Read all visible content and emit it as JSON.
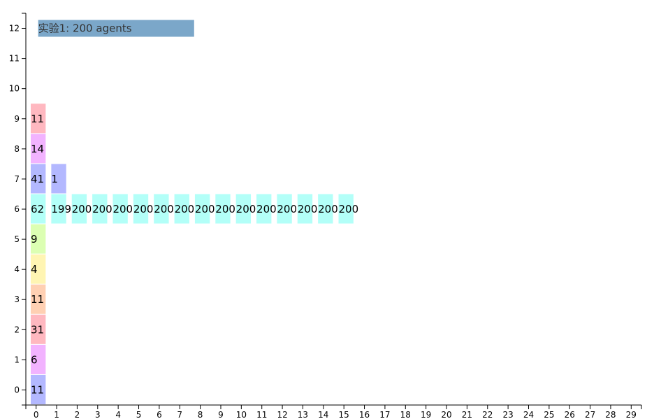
{
  "chart_data": {
    "type": "heatmap",
    "title": "实验1: 200 agents",
    "x_ticks": [
      0,
      1,
      2,
      3,
      4,
      5,
      6,
      7,
      8,
      9,
      10,
      11,
      12,
      13,
      14,
      15,
      16,
      17,
      18,
      19,
      20,
      21,
      22,
      23,
      24,
      25,
      26,
      27,
      28,
      29
    ],
    "y_ticks": [
      0,
      1,
      2,
      3,
      4,
      5,
      6,
      7,
      8,
      9,
      10,
      11,
      12
    ],
    "xlim": [
      -0.5,
      29.5
    ],
    "ylim": [
      -0.5,
      12.5
    ],
    "cells": [
      {
        "x": 0,
        "y": 0,
        "value": 11
      },
      {
        "x": 0,
        "y": 1,
        "value": 6
      },
      {
        "x": 0,
        "y": 2,
        "value": 31
      },
      {
        "x": 0,
        "y": 3,
        "value": 11
      },
      {
        "x": 0,
        "y": 4,
        "value": 4
      },
      {
        "x": 0,
        "y": 5,
        "value": 9
      },
      {
        "x": 0,
        "y": 6,
        "value": 62
      },
      {
        "x": 0,
        "y": 7,
        "value": 41
      },
      {
        "x": 0,
        "y": 8,
        "value": 14
      },
      {
        "x": 0,
        "y": 9,
        "value": 11
      },
      {
        "x": 1,
        "y": 6,
        "value": 199
      },
      {
        "x": 1,
        "y": 7,
        "value": 1
      },
      {
        "x": 2,
        "y": 6,
        "value": 200
      },
      {
        "x": 3,
        "y": 6,
        "value": 200
      },
      {
        "x": 4,
        "y": 6,
        "value": 200
      },
      {
        "x": 5,
        "y": 6,
        "value": 200
      },
      {
        "x": 6,
        "y": 6,
        "value": 200
      },
      {
        "x": 7,
        "y": 6,
        "value": 200
      },
      {
        "x": 8,
        "y": 6,
        "value": 200
      },
      {
        "x": 9,
        "y": 6,
        "value": 200
      },
      {
        "x": 10,
        "y": 6,
        "value": 200
      },
      {
        "x": 11,
        "y": 6,
        "value": 200
      },
      {
        "x": 12,
        "y": 6,
        "value": 200
      },
      {
        "x": 13,
        "y": 6,
        "value": 200
      },
      {
        "x": 14,
        "y": 6,
        "value": 200
      },
      {
        "x": 15,
        "y": 6,
        "value": 200
      }
    ],
    "row_colors": {
      "0": "#b3b8ff",
      "1": "#f2b3ff",
      "2": "#ffb8c0",
      "3": "#ffd0b3",
      "4": "#fff5b3",
      "5": "#dcffb3",
      "6": "#b3fff8",
      "7": "#b3b8ff",
      "8": "#f2b3ff",
      "9": "#ffb8c0"
    },
    "title_box_color": "#7ba7c9",
    "grid": false,
    "legend": "none"
  }
}
